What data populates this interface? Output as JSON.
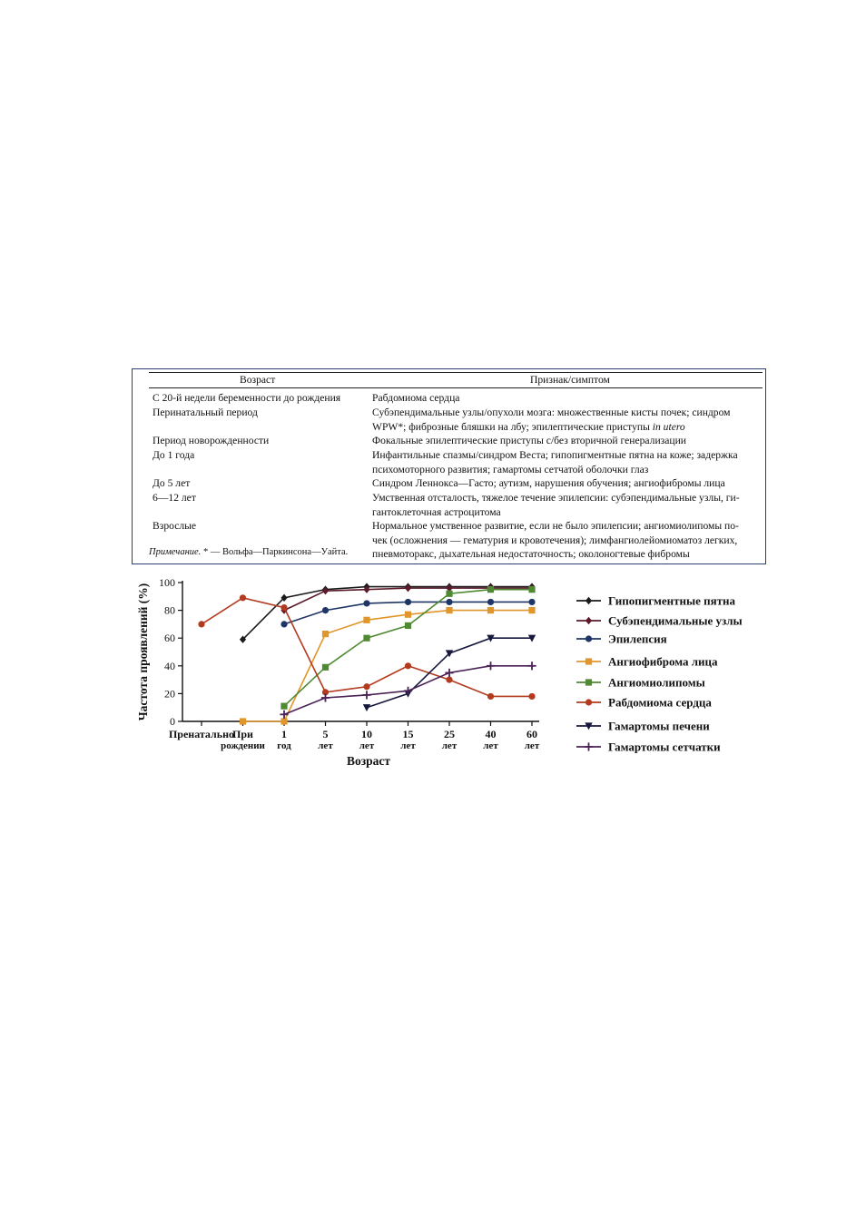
{
  "table": {
    "headers": [
      "Возраст",
      "Признак/симптом"
    ],
    "rows": [
      {
        "age": "С 20-й недели беременности до рождения",
        "symptom": [
          "Рабдомиома сердца"
        ]
      },
      {
        "age": "Перинатальный период",
        "symptom": [
          "Субэпендимальные узлы/опухоли мозга: множественные кисты почек; синдром",
          "WPW*; фиброзные бляшки на лбу; эпилептические приступы in utero"
        ]
      },
      {
        "age": "Период новорожденности",
        "symptom": [
          "Фокальные эпилептические приступы с/без вторичной генерализации"
        ]
      },
      {
        "age": "До 1 года",
        "symptom": [
          "Инфантильные спазмы/синдром Веста; гипопигментные пятна на коже; задержка",
          "психомоторного развития; гамартомы сетчатой оболочки глаз"
        ]
      },
      {
        "age": "До 5 лет",
        "symptom": [
          "Синдром Леннокса—Гасто; аутизм, нарушения обучения; ангиофибромы лица"
        ]
      },
      {
        "age": "6—12 лет",
        "symptom": [
          "Умственная отсталость, тяжелое течение эпилепсии: субэпендимальные узлы, ги-",
          "гантоклеточная астроцитома"
        ]
      },
      {
        "age": "Взрослые",
        "symptom": [
          "Нормальное умственное развитие, если не было эпилепсии; ангиомиолипомы по-",
          "чек (осложнения — гематурия и кровотечения); лимфангиолейомиоматоз легких,",
          "пневмоторакс, дыхательная недостаточность; околоногтевые фибромы"
        ]
      }
    ],
    "note_label": "Примечание.",
    "note_text": " * — Вольфа—Паркинсона—Уайта."
  },
  "chart_data": {
    "type": "line",
    "ylabel": "Частота проявлений (%)",
    "xlabel": "Возраст",
    "ylim": [
      0,
      100
    ],
    "yticks": [
      0,
      20,
      40,
      60,
      80,
      100
    ],
    "categories": [
      [
        "Пренатально"
      ],
      [
        "При",
        "рождении"
      ],
      [
        "1",
        "год"
      ],
      [
        "5",
        "лет"
      ],
      [
        "10",
        "лет"
      ],
      [
        "15",
        "лет"
      ],
      [
        "25",
        "лет"
      ],
      [
        "40",
        "лет"
      ],
      [
        "60",
        "лет"
      ]
    ],
    "series": [
      {
        "name": "Гипопигментные пятна",
        "color": "#1a1a1a",
        "marker": "diamond",
        "values": [
          null,
          59,
          89,
          95,
          97,
          97,
          97,
          97,
          97
        ]
      },
      {
        "name": "Субэпендимальные узлы",
        "color": "#5c1a2b",
        "marker": "diamond",
        "values": [
          null,
          null,
          80,
          94,
          95,
          96,
          96,
          96,
          96
        ]
      },
      {
        "name": "Эпилепсия",
        "color": "#1f3566",
        "marker": "circle",
        "values": [
          null,
          null,
          70,
          80,
          85,
          86,
          86,
          86,
          86
        ]
      },
      {
        "name": "Ангиофиброма лица",
        "color": "#e0962a",
        "marker": "square",
        "values": [
          null,
          0,
          0,
          63,
          73,
          77,
          80,
          80,
          80
        ]
      },
      {
        "name": "Ангиомиолипомы",
        "color": "#4f8a32",
        "marker": "square",
        "values": [
          null,
          null,
          11,
          39,
          60,
          69,
          92,
          95,
          95
        ]
      },
      {
        "name": "Рабдомиома сердца",
        "color": "#b23a1e",
        "marker": "circle",
        "values": [
          70,
          89,
          82,
          21,
          25,
          40,
          30,
          18,
          18
        ]
      },
      {
        "name": "Гамартомы печени",
        "color": "#16183d",
        "marker": "triangle",
        "values": [
          null,
          null,
          null,
          null,
          10,
          20,
          49,
          60,
          60
        ]
      },
      {
        "name": "Гамартомы сетчатки",
        "color": "#4a2255",
        "marker": "plus",
        "values": [
          null,
          null,
          5,
          17,
          19,
          22,
          35,
          40,
          40
        ]
      }
    ]
  }
}
